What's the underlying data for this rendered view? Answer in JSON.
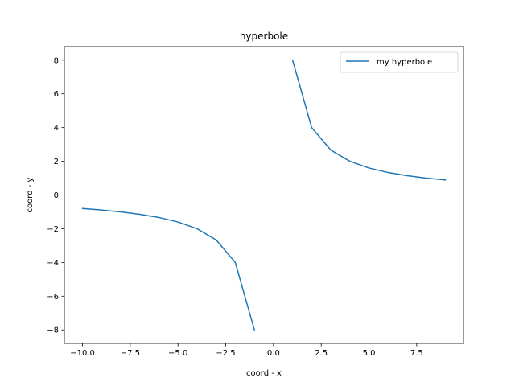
{
  "chart_data": {
    "type": "line",
    "title": "hyperbole",
    "xlabel": "coord - x",
    "ylabel": "coord - y",
    "xlim": [
      -10.95,
      9.95
    ],
    "ylim": [
      -8.8,
      8.8
    ],
    "xticks": [
      -10.0,
      -7.5,
      -5.0,
      -2.5,
      0.0,
      2.5,
      5.0,
      7.5
    ],
    "xtick_labels": [
      "−10.0",
      "−7.5",
      "−5.0",
      "−2.5",
      "0.0",
      "2.5",
      "5.0",
      "7.5"
    ],
    "yticks": [
      -8,
      -6,
      -4,
      -2,
      0,
      2,
      4,
      6,
      8
    ],
    "ytick_labels": [
      "−8",
      "−6",
      "−4",
      "−2",
      "0",
      "2",
      "4",
      "6",
      "8"
    ],
    "grid": false,
    "legend_position": "top-right",
    "series": [
      {
        "name": "my hyperbole",
        "color": "#1f77b4",
        "segments": [
          {
            "x": [
              -10,
              -9,
              -8,
              -7,
              -6,
              -5,
              -4,
              -3,
              -2,
              -1
            ],
            "y": [
              -0.8,
              -0.8889,
              -1.0,
              -1.1429,
              -1.3333,
              -1.6,
              -2.0,
              -2.6667,
              -4.0,
              -8.0
            ]
          },
          {
            "x": [
              1,
              2,
              3,
              4,
              5,
              6,
              7,
              8,
              9
            ],
            "y": [
              8.0,
              4.0,
              2.6667,
              2.0,
              1.6,
              1.3333,
              1.1429,
              1.0,
              0.8889
            ]
          }
        ]
      }
    ]
  }
}
